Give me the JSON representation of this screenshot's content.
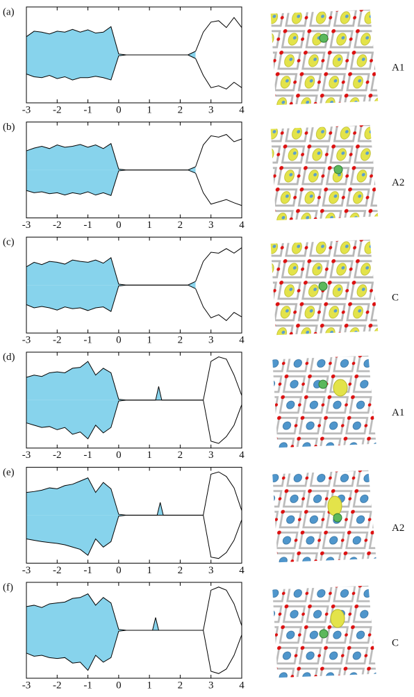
{
  "chart_data": [
    {
      "type": "area",
      "label": "(a)",
      "structure_label": "A1",
      "xlim": [
        -3,
        4
      ],
      "xticks": [
        -3,
        -2,
        -1,
        0,
        1,
        2,
        3,
        4
      ],
      "x": [
        -3,
        -2.75,
        -2.5,
        -2.25,
        -2,
        -1.75,
        -1.5,
        -1.25,
        -1,
        -0.75,
        -0.5,
        -0.25,
        0,
        0.25,
        0.5,
        0.75,
        1,
        1.25,
        1.5,
        1.75,
        2,
        2.25,
        2.5,
        2.75,
        3,
        3.25,
        3.5,
        3.75,
        4
      ],
      "series": [
        {
          "color": "#87d3ec",
          "values": [
            0.4,
            0.52,
            0.5,
            0.46,
            0.52,
            0.5,
            0.56,
            0.5,
            0.55,
            0.48,
            0.5,
            0.62,
            0.02,
            0,
            0,
            0,
            0,
            0,
            0,
            0,
            0,
            0,
            0.08,
            null,
            null,
            null,
            null,
            null,
            null
          ]
        },
        {
          "color": "#87d3ec",
          "values": [
            -0.42,
            -0.48,
            -0.5,
            -0.45,
            -0.52,
            -0.48,
            -0.55,
            -0.5,
            -0.5,
            -0.47,
            -0.5,
            -0.55,
            -0.02,
            0,
            0,
            0,
            0,
            0,
            0,
            0,
            0,
            0,
            -0.08,
            null,
            null,
            null,
            null,
            null,
            null
          ]
        },
        {
          "color": "#ffffff",
          "values": [
            null,
            null,
            null,
            null,
            null,
            null,
            null,
            null,
            null,
            null,
            null,
            null,
            null,
            null,
            null,
            null,
            null,
            null,
            null,
            null,
            null,
            null,
            0.08,
            0.5,
            0.72,
            0.75,
            0.6,
            0.82,
            0.6
          ]
        },
        {
          "color": "#ffffff",
          "values": [
            null,
            null,
            null,
            null,
            null,
            null,
            null,
            null,
            null,
            null,
            null,
            null,
            null,
            null,
            null,
            null,
            null,
            null,
            null,
            null,
            null,
            null,
            -0.08,
            -0.45,
            -0.72,
            -0.68,
            -0.75,
            -0.6,
            -0.72
          ]
        }
      ]
    },
    {
      "type": "area",
      "label": "(b)",
      "structure_label": "A2",
      "xlim": [
        -3,
        4
      ],
      "xticks": [
        -3,
        -2,
        -1,
        0,
        1,
        2,
        3,
        4
      ],
      "x": [
        -3,
        -2.75,
        -2.5,
        -2.25,
        -2,
        -1.75,
        -1.5,
        -1.25,
        -1,
        -0.75,
        -0.5,
        -0.25,
        0,
        0.25,
        0.5,
        0.75,
        1,
        1.25,
        1.5,
        1.75,
        2,
        2.25,
        2.5,
        2.75,
        3,
        3.25,
        3.5,
        3.75,
        4
      ],
      "series": [
        {
          "color": "#87d3ec",
          "values": [
            0.42,
            0.48,
            0.52,
            0.47,
            0.55,
            0.5,
            0.52,
            0.56,
            0.5,
            0.55,
            0.47,
            0.58,
            0.02,
            0,
            0,
            0,
            0,
            0,
            0,
            0,
            0,
            0,
            0.07,
            null,
            null,
            null,
            null,
            null,
            null
          ]
        },
        {
          "color": "#87d3ec",
          "values": [
            -0.45,
            -0.5,
            -0.48,
            -0.52,
            -0.5,
            -0.55,
            -0.5,
            -0.53,
            -0.48,
            -0.55,
            -0.5,
            -0.56,
            -0.02,
            0,
            0,
            0,
            0,
            0,
            0,
            0,
            0,
            0,
            -0.07,
            null,
            null,
            null,
            null,
            null,
            null
          ]
        },
        {
          "color": "#ffffff",
          "values": [
            null,
            null,
            null,
            null,
            null,
            null,
            null,
            null,
            null,
            null,
            null,
            null,
            null,
            null,
            null,
            null,
            null,
            null,
            null,
            null,
            null,
            null,
            0.07,
            0.55,
            0.75,
            0.72,
            0.78,
            0.62,
            0.68
          ]
        },
        {
          "color": "#ffffff",
          "values": [
            null,
            null,
            null,
            null,
            null,
            null,
            null,
            null,
            null,
            null,
            null,
            null,
            null,
            null,
            null,
            null,
            null,
            null,
            null,
            null,
            null,
            null,
            -0.07,
            -0.5,
            -0.75,
            -0.7,
            -0.65,
            -0.72,
            -0.78
          ]
        }
      ]
    },
    {
      "type": "area",
      "label": "(c)",
      "structure_label": "C",
      "xlim": [
        -3,
        4
      ],
      "xticks": [
        -3,
        -2,
        -1,
        0,
        1,
        2,
        3,
        4
      ],
      "x": [
        -3,
        -2.75,
        -2.5,
        -2.25,
        -2,
        -1.75,
        -1.5,
        -1.25,
        -1,
        -0.75,
        -0.5,
        -0.25,
        0,
        0.25,
        0.5,
        0.75,
        1,
        1.25,
        1.5,
        1.75,
        2,
        2.25,
        2.5,
        2.75,
        3,
        3.25,
        3.5,
        3.75,
        4
      ],
      "series": [
        {
          "color": "#87d3ec",
          "values": [
            0.4,
            0.5,
            0.45,
            0.52,
            0.5,
            0.46,
            0.55,
            0.52,
            0.5,
            0.55,
            0.48,
            0.6,
            0.02,
            0,
            0,
            0,
            0,
            0,
            0,
            0,
            0,
            0,
            0.08,
            null,
            null,
            null,
            null,
            null,
            null
          ]
        },
        {
          "color": "#87d3ec",
          "values": [
            -0.43,
            -0.5,
            -0.47,
            -0.5,
            -0.55,
            -0.48,
            -0.52,
            -0.5,
            -0.56,
            -0.5,
            -0.48,
            -0.58,
            -0.02,
            0,
            0,
            0,
            0,
            0,
            0,
            0,
            0,
            0,
            -0.08,
            null,
            null,
            null,
            null,
            null,
            null
          ]
        },
        {
          "color": "#ffffff",
          "values": [
            null,
            null,
            null,
            null,
            null,
            null,
            null,
            null,
            null,
            null,
            null,
            null,
            null,
            null,
            null,
            null,
            null,
            null,
            null,
            null,
            null,
            null,
            0.08,
            0.52,
            0.72,
            0.7,
            0.8,
            0.7,
            0.82
          ]
        },
        {
          "color": "#ffffff",
          "values": [
            null,
            null,
            null,
            null,
            null,
            null,
            null,
            null,
            null,
            null,
            null,
            null,
            null,
            null,
            null,
            null,
            null,
            null,
            null,
            null,
            null,
            null,
            -0.08,
            -0.48,
            -0.72,
            -0.65,
            -0.78,
            -0.6,
            -0.7
          ]
        }
      ]
    },
    {
      "type": "area",
      "label": "(d)",
      "structure_label": "A1",
      "xlim": [
        -3,
        4
      ],
      "xticks": [
        -3,
        -2,
        -1,
        0,
        1,
        2,
        3,
        4
      ],
      "x": [
        -3,
        -2.75,
        -2.5,
        -2.25,
        -2,
        -1.75,
        -1.5,
        -1.25,
        -1,
        -0.75,
        -0.5,
        -0.25,
        0,
        0.25,
        0.5,
        0.75,
        1,
        1.2,
        1.3,
        1.4,
        1.5,
        1.75,
        2,
        2.25,
        2.5,
        2.75,
        3,
        3.25,
        3.5,
        3.75,
        4
      ],
      "series": [
        {
          "color": "#87d3ec",
          "values": [
            0.5,
            0.55,
            0.52,
            0.6,
            0.62,
            0.6,
            0.7,
            0.72,
            0.85,
            0.55,
            0.7,
            0.6,
            0.02,
            0,
            0,
            0,
            0,
            0,
            0.3,
            0,
            0,
            0,
            0,
            0,
            0,
            0,
            null,
            null,
            null,
            null,
            null
          ]
        },
        {
          "color": "#87d3ec",
          "values": [
            -0.5,
            -0.55,
            -0.6,
            -0.58,
            -0.65,
            -0.6,
            -0.75,
            -0.7,
            -0.85,
            -0.55,
            -0.72,
            -0.6,
            -0.02,
            0,
            0,
            0,
            0,
            0,
            0,
            0,
            0,
            0,
            0,
            0,
            0,
            0,
            null,
            null,
            null,
            null,
            null
          ]
        },
        {
          "color": "#ffffff",
          "values": [
            null,
            null,
            null,
            null,
            null,
            null,
            null,
            null,
            null,
            null,
            null,
            null,
            null,
            null,
            null,
            null,
            null,
            null,
            null,
            null,
            null,
            null,
            null,
            null,
            null,
            0,
            0.85,
            0.95,
            0.9,
            0.55,
            0.1
          ]
        },
        {
          "color": "#ffffff",
          "values": [
            null,
            null,
            null,
            null,
            null,
            null,
            null,
            null,
            null,
            null,
            null,
            null,
            null,
            null,
            null,
            null,
            null,
            null,
            null,
            null,
            null,
            null,
            null,
            null,
            null,
            0,
            -0.9,
            -0.95,
            -0.8,
            -0.55,
            -0.1
          ]
        }
      ]
    },
    {
      "type": "area",
      "label": "(e)",
      "structure_label": "A2",
      "xlim": [
        -3,
        4
      ],
      "xticks": [
        -3,
        -2,
        -1,
        0,
        1,
        2,
        3,
        4
      ],
      "x": [
        -3,
        -2.75,
        -2.5,
        -2.25,
        -2,
        -1.75,
        -1.5,
        -1.25,
        -1,
        -0.75,
        -0.5,
        -0.25,
        0,
        0.25,
        0.5,
        0.75,
        1,
        1.25,
        1.35,
        1.45,
        1.5,
        1.75,
        2,
        2.25,
        2.5,
        2.75,
        3,
        3.25,
        3.5,
        3.75,
        4
      ],
      "series": [
        {
          "color": "#87d3ec",
          "values": [
            0.5,
            0.52,
            0.55,
            0.6,
            0.58,
            0.65,
            0.68,
            0.75,
            0.82,
            0.5,
            0.72,
            0.58,
            0.02,
            0,
            0,
            0,
            0,
            0,
            0.28,
            0,
            0,
            0,
            0,
            0,
            0,
            0,
            null,
            null,
            null,
            null,
            null
          ]
        },
        {
          "color": "#87d3ec",
          "values": [
            -0.52,
            -0.55,
            -0.58,
            -0.6,
            -0.62,
            -0.65,
            -0.7,
            -0.75,
            -0.88,
            -0.52,
            -0.7,
            -0.58,
            -0.02,
            0,
            0,
            0,
            0,
            0,
            0,
            0,
            0,
            0,
            0,
            0,
            0,
            0,
            null,
            null,
            null,
            null,
            null
          ]
        },
        {
          "color": "#ffffff",
          "values": [
            null,
            null,
            null,
            null,
            null,
            null,
            null,
            null,
            null,
            null,
            null,
            null,
            null,
            null,
            null,
            null,
            null,
            null,
            null,
            null,
            null,
            null,
            null,
            null,
            null,
            0,
            0.9,
            0.95,
            0.85,
            0.6,
            0.1
          ]
        },
        {
          "color": "#ffffff",
          "values": [
            null,
            null,
            null,
            null,
            null,
            null,
            null,
            null,
            null,
            null,
            null,
            null,
            null,
            null,
            null,
            null,
            null,
            null,
            null,
            null,
            null,
            null,
            null,
            null,
            null,
            0,
            -0.92,
            -0.95,
            -0.82,
            -0.55,
            -0.1
          ]
        }
      ]
    },
    {
      "type": "area",
      "label": "(f)",
      "structure_label": "C",
      "xlim": [
        -3,
        4
      ],
      "xticks": [
        -3,
        -2,
        -1,
        0,
        1,
        2,
        3,
        4
      ],
      "x": [
        -3,
        -2.75,
        -2.5,
        -2.25,
        -2,
        -1.75,
        -1.5,
        -1.25,
        -1,
        -0.75,
        -0.5,
        -0.25,
        0,
        0.25,
        0.5,
        0.75,
        1,
        1.1,
        1.2,
        1.3,
        1.5,
        1.75,
        2,
        2.25,
        2.5,
        2.75,
        3,
        3.25,
        3.5,
        3.75,
        4
      ],
      "series": [
        {
          "color": "#87d3ec",
          "values": [
            0.52,
            0.55,
            0.5,
            0.58,
            0.6,
            0.62,
            0.7,
            0.72,
            0.8,
            0.55,
            0.72,
            0.6,
            0.02,
            0,
            0,
            0,
            0,
            0,
            0.28,
            0,
            0,
            0,
            0,
            0,
            0,
            0,
            null,
            null,
            null,
            null,
            null
          ]
        },
        {
          "color": "#87d3ec",
          "values": [
            -0.5,
            -0.57,
            -0.55,
            -0.6,
            -0.62,
            -0.6,
            -0.72,
            -0.7,
            -0.88,
            -0.55,
            -0.7,
            -0.6,
            -0.02,
            0,
            0,
            0,
            0,
            0,
            0,
            0,
            0,
            0,
            0,
            0,
            0,
            0,
            null,
            null,
            null,
            null,
            null
          ]
        },
        {
          "color": "#ffffff",
          "values": [
            null,
            null,
            null,
            null,
            null,
            null,
            null,
            null,
            null,
            null,
            null,
            null,
            null,
            null,
            null,
            null,
            null,
            null,
            null,
            null,
            null,
            null,
            null,
            null,
            null,
            0,
            0.88,
            0.95,
            0.88,
            0.58,
            0.1
          ]
        },
        {
          "color": "#ffffff",
          "values": [
            null,
            null,
            null,
            null,
            null,
            null,
            null,
            null,
            null,
            null,
            null,
            null,
            null,
            null,
            null,
            null,
            null,
            null,
            null,
            null,
            null,
            null,
            null,
            null,
            null,
            0,
            -0.9,
            -0.95,
            -0.85,
            -0.55,
            -0.1
          ]
        }
      ]
    }
  ]
}
